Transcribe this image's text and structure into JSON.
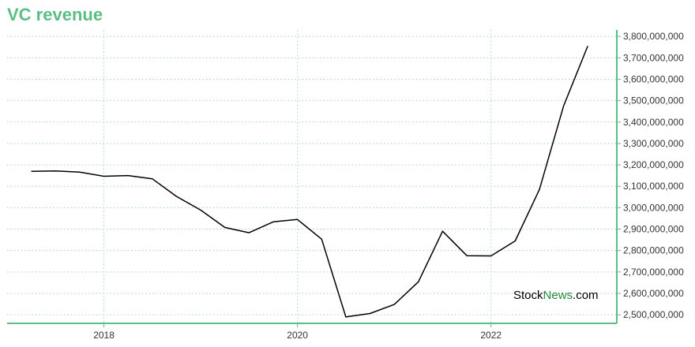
{
  "colors": {
    "accent": "#5bbf85",
    "line": "#000000",
    "grid": "#9fd8b8",
    "watermark_green": "#1f8a3a"
  },
  "watermark": {
    "part1": "Stock",
    "part2": "News",
    "part3": ".com"
  },
  "chart_data": {
    "type": "line",
    "title": "VC revenue",
    "xlabel": "",
    "ylabel": "",
    "x_ticks": [
      {
        "label": "2018",
        "value": 2018.0
      },
      {
        "label": "2020",
        "value": 2020.0
      },
      {
        "label": "2022",
        "value": 2022.0
      }
    ],
    "y_ticks": [
      {
        "label": "2,500,000,000",
        "value": 2500000000
      },
      {
        "label": "2,600,000,000",
        "value": 2600000000
      },
      {
        "label": "2,700,000,000",
        "value": 2700000000
      },
      {
        "label": "2,800,000,000",
        "value": 2800000000
      },
      {
        "label": "2,900,000,000",
        "value": 2900000000
      },
      {
        "label": "3,000,000,000",
        "value": 3000000000
      },
      {
        "label": "3,100,000,000",
        "value": 3100000000
      },
      {
        "label": "3,200,000,000",
        "value": 3200000000
      },
      {
        "label": "3,300,000,000",
        "value": 3300000000
      },
      {
        "label": "3,400,000,000",
        "value": 3400000000
      },
      {
        "label": "3,500,000,000",
        "value": 3500000000
      },
      {
        "label": "3,600,000,000",
        "value": 3600000000
      },
      {
        "label": "3,700,000,000",
        "value": 3700000000
      },
      {
        "label": "3,800,000,000",
        "value": 3800000000
      }
    ],
    "xlim": [
      2017.0,
      2023.3
    ],
    "ylim": [
      2460000000,
      3830000000
    ],
    "y_axis_side": "right",
    "grid": true,
    "series": [
      {
        "x": [
          2017.25,
          2017.5,
          2017.75,
          2018.0,
          2018.25,
          2018.5,
          2018.75,
          2019.0,
          2019.25,
          2019.5,
          2019.75,
          2020.0,
          2020.25,
          2020.5,
          2020.75,
          2021.0,
          2021.25,
          2021.5,
          2021.75,
          2022.0,
          2022.25,
          2022.5,
          2022.75,
          2023.0
        ],
        "y": [
          3170000000,
          3172000000,
          3166000000,
          3147000000,
          3150000000,
          3135000000,
          3053000000,
          2989000000,
          2908000000,
          2883000000,
          2934000000,
          2945000000,
          2853000000,
          2490000000,
          2506000000,
          2548000000,
          2654000000,
          2890000000,
          2776000000,
          2775000000,
          2845000000,
          3085000000,
          3475000000,
          3755000000
        ]
      }
    ]
  }
}
